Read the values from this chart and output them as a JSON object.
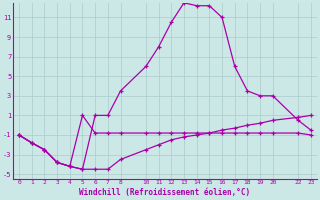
{
  "xlabel": "Windchill (Refroidissement éolien,°C)",
  "bg_color": "#cce8e6",
  "line_color": "#aa00aa",
  "grid_color": "#aacccc",
  "xlim": [
    -0.5,
    23.5
  ],
  "ylim": [
    -5.5,
    12.5
  ],
  "xticks": [
    0,
    1,
    2,
    3,
    4,
    5,
    6,
    7,
    8,
    10,
    11,
    12,
    13,
    14,
    15,
    16,
    17,
    18,
    19,
    20,
    22,
    23
  ],
  "yticks": [
    -5,
    -3,
    -1,
    1,
    3,
    5,
    7,
    9,
    11
  ],
  "lines": [
    {
      "x": [
        0,
        1,
        2,
        3,
        4,
        5,
        6,
        7,
        8,
        10,
        11,
        12,
        13,
        14,
        15,
        16,
        17,
        18,
        19,
        20,
        22,
        23
      ],
      "y": [
        -1,
        -1.8,
        -2.5,
        -3.8,
        -4.2,
        -4.5,
        1.0,
        1.0,
        3.5,
        6.0,
        8.0,
        10.5,
        12.5,
        12.2,
        12.2,
        11.0,
        6.0,
        3.5,
        3.0,
        3.0,
        0.5,
        -0.5
      ]
    },
    {
      "x": [
        0,
        1,
        2,
        3,
        4,
        5,
        6,
        7,
        8,
        10,
        11,
        12,
        13,
        14,
        15,
        16,
        17,
        18,
        19,
        20,
        22,
        23
      ],
      "y": [
        -1,
        -1.8,
        -2.5,
        -3.8,
        -4.2,
        1.0,
        -0.8,
        -0.8,
        -0.8,
        -0.8,
        -0.8,
        -0.8,
        -0.8,
        -0.8,
        -0.8,
        -0.8,
        -0.8,
        -0.8,
        -0.8,
        -0.8,
        -0.8,
        -1.0
      ]
    },
    {
      "x": [
        0,
        1,
        2,
        3,
        4,
        5,
        6,
        7,
        8,
        10,
        11,
        12,
        13,
        14,
        15,
        16,
        17,
        18,
        19,
        20,
        22,
        23
      ],
      "y": [
        -1,
        -1.8,
        -2.5,
        -3.8,
        -4.2,
        -4.5,
        -4.5,
        -4.5,
        -3.5,
        -2.5,
        -2.0,
        -1.5,
        -1.2,
        -1.0,
        -0.8,
        -0.5,
        -0.3,
        0.0,
        0.2,
        0.5,
        0.8,
        1.0
      ]
    }
  ]
}
